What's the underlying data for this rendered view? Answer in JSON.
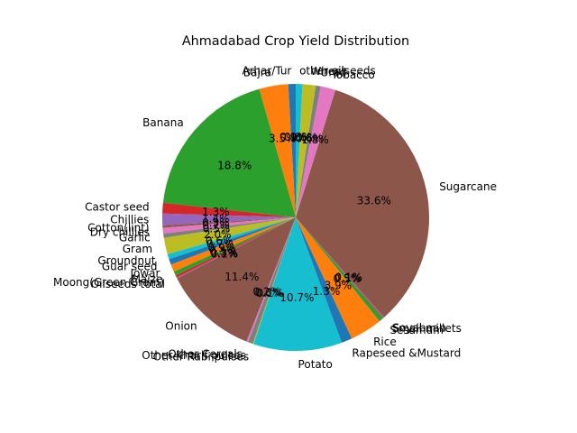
{
  "chart_data": {
    "type": "pie",
    "title": "Ahmadabad Crop Yield Distribution",
    "start_angle_deg": 90,
    "direction": "counterclockwise",
    "slices": [
      {
        "label": "Arhar/Tur",
        "value": 0.9,
        "pct_label": "0.9%",
        "color": "#1f77b4"
      },
      {
        "label": "Bajra",
        "value": 3.5,
        "pct_label": "3.5%",
        "color": "#ff7f0e"
      },
      {
        "label": "Banana",
        "value": 18.8,
        "pct_label": "18.8%",
        "color": "#2ca02c"
      },
      {
        "label": "Castor seed",
        "value": 1.3,
        "pct_label": "1.3%",
        "color": "#d62728"
      },
      {
        "label": "Chillies",
        "value": 1.4,
        "pct_label": "1.4%",
        "color": "#9467bd"
      },
      {
        "label": "Cotton(lint)",
        "value": 0.3,
        "pct_label": "0.3%",
        "color": "#8c564b"
      },
      {
        "label": "Dry chillies",
        "value": 0.7,
        "pct_label": "0.7%",
        "color": "#e377c2"
      },
      {
        "label": "Garlic",
        "value": 0.5,
        "pct_label": "0.5%",
        "color": "#7f7f7f"
      },
      {
        "label": "Gram",
        "value": 2.0,
        "pct_label": "2.0%",
        "color": "#bcbd22"
      },
      {
        "label": "Groundnut",
        "value": 0.6,
        "pct_label": "0.6%",
        "color": "#17becf"
      },
      {
        "label": "Guar seed",
        "value": 0.7,
        "pct_label": "0.7%",
        "color": "#1f77b4"
      },
      {
        "label": "Jowar",
        "value": 0.9,
        "pct_label": "0.9%",
        "color": "#ff7f0e"
      },
      {
        "label": "Maize",
        "value": 0.5,
        "pct_label": "0.5%",
        "color": "#2ca02c"
      },
      {
        "label": "Moong(Green Gram)",
        "value": 0.3,
        "pct_label": "0.3%",
        "color": "#d62728"
      },
      {
        "label": "Oilseeds total",
        "value": 0.1,
        "pct_label": "0.1%",
        "color": "#9467bd"
      },
      {
        "label": "Onion",
        "value": 11.4,
        "pct_label": "11.4%",
        "color": "#8c564b"
      },
      {
        "label": "Other Cereals",
        "value": 0.2,
        "pct_label": "0.2%",
        "color": "#e377c2"
      },
      {
        "label": "Other Kharif pulses",
        "value": 0.6,
        "pct_label": "0.6%",
        "color": "#7f7f7f"
      },
      {
        "label": "Other Rabi pulses",
        "value": 0.1,
        "pct_label": "0.1%",
        "color": "#bcbd22"
      },
      {
        "label": "Potato",
        "value": 10.7,
        "pct_label": "10.7%",
        "color": "#17becf"
      },
      {
        "label": "Rapeseed &Mustard",
        "value": 1.3,
        "pct_label": "1.3%",
        "color": "#1f77b4"
      },
      {
        "label": "Rice",
        "value": 3.9,
        "pct_label": "3.9%",
        "color": "#ff7f0e"
      },
      {
        "label": "Sesamum",
        "value": 0.5,
        "pct_label": "0.5%",
        "color": "#2ca02c"
      },
      {
        "label": "Small millets",
        "value": 0.1,
        "pct_label": "0.1%",
        "color": "#d62728"
      },
      {
        "label": "Soyabean",
        "value": 0.1,
        "pct_label": "0.1%",
        "color": "#9467bd"
      },
      {
        "label": "Sugarcane",
        "value": 33.6,
        "pct_label": "33.6%",
        "color": "#8c564b"
      },
      {
        "label": "Tobacco",
        "value": 1.8,
        "pct_label": "1.8%",
        "color": "#e377c2"
      },
      {
        "label": "Urad",
        "value": 0.6,
        "pct_label": "0.6%",
        "color": "#7f7f7f"
      },
      {
        "label": "Wheat",
        "value": 1.6,
        "pct_label": "1.6%",
        "color": "#bcbd22"
      },
      {
        "label": "other oilseeds",
        "value": 0.8,
        "pct_label": "0.8%",
        "color": "#17becf"
      }
    ]
  }
}
